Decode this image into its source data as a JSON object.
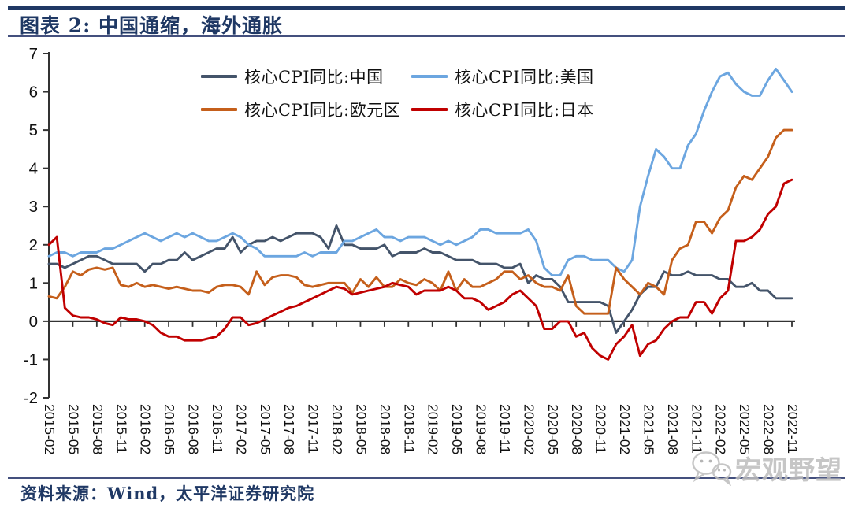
{
  "header": {
    "title": "图表 2:  中国通缩，海外通胀"
  },
  "footer": {
    "source": "资料来源：Wind，太平洋证券研究院"
  },
  "watermark": {
    "text": "宏观野望",
    "icon": "wechat-icon"
  },
  "colors": {
    "accent_navy": "#1F3864",
    "axis": "#333333",
    "china": "#44546A",
    "us": "#6CA6E0",
    "eurozone": "#C55F1B",
    "japan": "#C00000",
    "watermark_gray": "#BDBDBD"
  },
  "chart_data": {
    "type": "line",
    "title": "图表 2: 中国通缩，海外通胀",
    "xlabel": "",
    "ylabel": "",
    "x_start": "2015-02",
    "x_end": "2022-11",
    "frequency": "monthly",
    "n_points": 94,
    "ylim": [
      -2,
      7
    ],
    "yticks": [
      7,
      6,
      5,
      4,
      3,
      2,
      1,
      0,
      -1,
      -2
    ],
    "grid": false,
    "legend_position": "top-inside-two-columns",
    "xtick_labels": [
      "2015-02",
      "2015-05",
      "2015-08",
      "2015-11",
      "2016-02",
      "2016-05",
      "2016-08",
      "2016-11",
      "2017-02",
      "2017-05",
      "2017-08",
      "2017-11",
      "2018-02",
      "2018-05",
      "2018-08",
      "2018-11",
      "2019-02",
      "2019-05",
      "2019-08",
      "2019-11",
      "2020-02",
      "2020-05",
      "2020-08",
      "2020-11",
      "2021-02",
      "2021-05",
      "2021-08",
      "2021-11",
      "2022-02",
      "2022-05",
      "2022-08",
      "2022-11"
    ],
    "series": [
      {
        "name": "核心CPI同比:中国",
        "color": "#44546A",
        "values": [
          1.5,
          1.5,
          1.4,
          1.5,
          1.6,
          1.7,
          1.7,
          1.6,
          1.5,
          1.5,
          1.5,
          1.5,
          1.3,
          1.5,
          1.5,
          1.6,
          1.6,
          1.8,
          1.6,
          1.7,
          1.8,
          1.9,
          1.9,
          2.2,
          1.8,
          2.0,
          2.1,
          2.1,
          2.2,
          2.1,
          2.2,
          2.3,
          2.3,
          2.3,
          2.2,
          1.9,
          2.5,
          2.0,
          2.0,
          1.9,
          1.9,
          1.9,
          2.0,
          1.7,
          1.8,
          1.8,
          1.8,
          1.9,
          1.8,
          1.8,
          1.7,
          1.6,
          1.6,
          1.6,
          1.5,
          1.5,
          1.5,
          1.4,
          1.4,
          1.5,
          1.0,
          1.2,
          1.1,
          1.1,
          0.9,
          0.5,
          0.5,
          0.5,
          0.5,
          0.5,
          0.4,
          -0.3,
          0.0,
          0.3,
          0.7,
          0.9,
          0.9,
          1.3,
          1.2,
          1.2,
          1.3,
          1.2,
          1.2,
          1.2,
          1.1,
          1.1,
          0.9,
          0.9,
          1.0,
          0.8,
          0.8,
          0.6,
          0.6,
          0.6
        ]
      },
      {
        "name": "核心CPI同比:美国",
        "color": "#6CA6E0",
        "values": [
          1.7,
          1.8,
          1.8,
          1.7,
          1.8,
          1.8,
          1.8,
          1.9,
          1.9,
          2.0,
          2.1,
          2.2,
          2.3,
          2.2,
          2.1,
          2.2,
          2.3,
          2.2,
          2.3,
          2.2,
          2.1,
          2.1,
          2.2,
          2.3,
          2.2,
          2.0,
          1.9,
          1.7,
          1.7,
          1.7,
          1.7,
          1.7,
          1.8,
          1.7,
          1.8,
          1.8,
          1.8,
          2.1,
          2.1,
          2.2,
          2.3,
          2.4,
          2.2,
          2.2,
          2.1,
          2.2,
          2.2,
          2.2,
          2.1,
          2.0,
          2.1,
          2.0,
          2.1,
          2.2,
          2.4,
          2.4,
          2.3,
          2.3,
          2.3,
          2.3,
          2.4,
          2.1,
          1.4,
          1.2,
          1.2,
          1.6,
          1.7,
          1.7,
          1.6,
          1.6,
          1.6,
          1.4,
          1.3,
          1.6,
          3.0,
          3.8,
          4.5,
          4.3,
          4.0,
          4.0,
          4.6,
          4.9,
          5.5,
          6.0,
          6.4,
          6.5,
          6.2,
          6.0,
          5.9,
          5.9,
          6.3,
          6.6,
          6.3,
          6.0
        ]
      },
      {
        "name": "核心CPI同比:欧元区",
        "color": "#C55F1B",
        "values": [
          0.65,
          0.6,
          0.9,
          1.3,
          1.2,
          1.35,
          1.4,
          1.35,
          1.4,
          0.95,
          0.9,
          1.0,
          0.9,
          0.95,
          0.9,
          0.85,
          0.9,
          0.85,
          0.8,
          0.8,
          0.75,
          0.9,
          0.95,
          0.95,
          0.9,
          0.7,
          1.3,
          0.95,
          1.15,
          1.2,
          1.2,
          1.15,
          0.95,
          0.9,
          0.95,
          1.0,
          1.0,
          1.0,
          0.75,
          1.1,
          0.9,
          1.15,
          0.9,
          0.9,
          1.1,
          1.0,
          0.95,
          1.1,
          1.0,
          0.8,
          1.3,
          0.8,
          1.1,
          0.9,
          0.9,
          1.0,
          1.1,
          1.3,
          1.3,
          1.1,
          1.2,
          1.0,
          0.9,
          0.9,
          0.8,
          1.2,
          0.4,
          0.2,
          0.2,
          0.2,
          0.2,
          1.4,
          1.1,
          0.9,
          0.7,
          1.0,
          0.9,
          0.7,
          1.6,
          1.9,
          2.0,
          2.6,
          2.6,
          2.3,
          2.7,
          2.9,
          3.5,
          3.8,
          3.7,
          4.0,
          4.3,
          4.8,
          5.0,
          5.0
        ]
      },
      {
        "name": "核心CPI同比:日本",
        "color": "#C00000",
        "values": [
          2.0,
          2.2,
          0.35,
          0.15,
          0.1,
          0.1,
          0.05,
          -0.05,
          -0.1,
          0.1,
          0.05,
          0.05,
          0.0,
          -0.1,
          -0.3,
          -0.4,
          -0.4,
          -0.5,
          -0.5,
          -0.5,
          -0.45,
          -0.4,
          -0.2,
          0.1,
          0.1,
          -0.1,
          -0.05,
          0.05,
          0.15,
          0.25,
          0.35,
          0.4,
          0.5,
          0.6,
          0.7,
          0.8,
          0.9,
          0.85,
          0.7,
          0.75,
          0.8,
          0.85,
          0.9,
          1.0,
          0.95,
          0.9,
          0.7,
          0.8,
          0.8,
          0.8,
          0.9,
          0.8,
          0.6,
          0.6,
          0.5,
          0.3,
          0.4,
          0.5,
          0.7,
          0.8,
          0.6,
          0.4,
          -0.2,
          -0.2,
          0.0,
          0.0,
          -0.4,
          -0.3,
          -0.7,
          -0.9,
          -1.0,
          -0.6,
          -0.4,
          -0.1,
          -0.9,
          -0.6,
          -0.5,
          -0.2,
          0.0,
          0.1,
          0.1,
          0.5,
          0.5,
          0.2,
          0.6,
          0.8,
          2.1,
          2.1,
          2.2,
          2.4,
          2.8,
          3.0,
          3.6,
          3.7
        ]
      }
    ]
  }
}
